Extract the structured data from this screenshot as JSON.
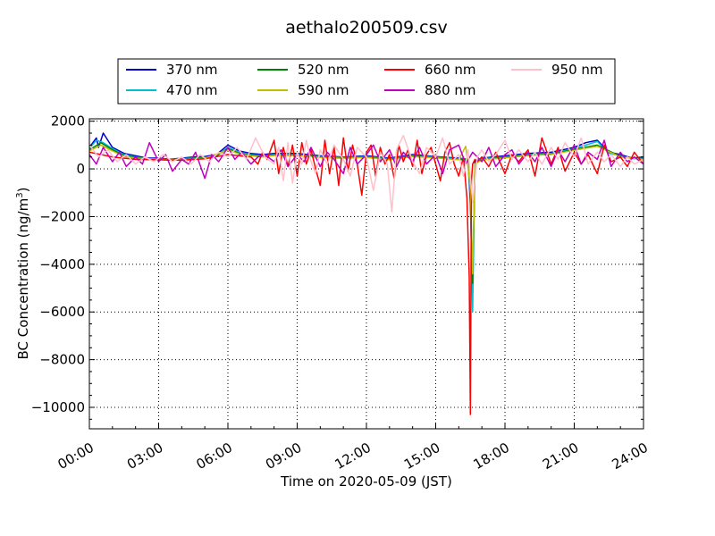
{
  "chart_data": {
    "type": "line",
    "title": "aethalo200509.csv",
    "xlabel": "Time on 2020-05-09 (JST)",
    "ylabel_main": "BC Concentration (ng/m",
    "ylabel_sup": "3",
    "ylabel_close": ")",
    "x_unit": "hours",
    "xlim": [
      0,
      24
    ],
    "ylim": [
      -10900,
      2100
    ],
    "x_tick_values": [
      0,
      3,
      6,
      9,
      12,
      15,
      18,
      21,
      24
    ],
    "x_tick_labels": [
      "00:00",
      "03:00",
      "06:00",
      "09:00",
      "12:00",
      "15:00",
      "18:00",
      "21:00",
      "24:00"
    ],
    "y_tick_values": [
      2000,
      0,
      -2000,
      -4000,
      -6000,
      -8000,
      -10000
    ],
    "y_tick_labels": [
      "2000",
      "0",
      "−2000",
      "−4000",
      "−6000",
      "−8000",
      "−10000"
    ],
    "grid": true,
    "legend_position": "top-center",
    "legend_columns": 4,
    "series": [
      {
        "name": "370 nm",
        "color": "#0000cc",
        "x": [
          0,
          0.3,
          0.4,
          0.6,
          1,
          1.5,
          2,
          2.5,
          3,
          3.5,
          4,
          4.5,
          5,
          5.5,
          6,
          6.5,
          7,
          7.5,
          8,
          9,
          10,
          11,
          12,
          13,
          14,
          15,
          16,
          16.4,
          16.5,
          16.6,
          16.7,
          17,
          18,
          19,
          20,
          21,
          21.5,
          22,
          22.5,
          23,
          23.5,
          24
        ],
        "y": [
          900,
          1300,
          900,
          1500,
          900,
          650,
          550,
          450,
          450,
          400,
          450,
          500,
          520,
          600,
          1000,
          750,
          650,
          600,
          650,
          650,
          550,
          500,
          550,
          450,
          600,
          520,
          450,
          400,
          -1500,
          -5200,
          300,
          450,
          550,
          650,
          700,
          900,
          1100,
          1200,
          700,
          600,
          450,
          500
        ]
      },
      {
        "name": "470 nm",
        "color": "#00bfcf",
        "x": [
          0,
          0.3,
          0.6,
          1,
          1.5,
          2,
          2.5,
          3,
          3.5,
          4,
          4.5,
          5,
          5.5,
          6,
          6.5,
          7,
          7.5,
          8,
          9,
          10,
          11,
          12,
          13,
          14,
          15,
          16,
          16.4,
          16.5,
          16.6,
          16.7,
          17,
          18,
          19,
          20,
          21,
          21.5,
          22,
          22.5,
          23,
          23.5,
          24
        ],
        "y": [
          850,
          1200,
          1100,
          850,
          600,
          500,
          420,
          420,
          380,
          420,
          460,
          480,
          560,
          900,
          700,
          600,
          550,
          600,
          600,
          520,
          480,
          520,
          420,
          560,
          500,
          420,
          380,
          -1200,
          -6000,
          200,
          420,
          500,
          600,
          650,
          850,
          1000,
          1150,
          650,
          550,
          420,
          450
        ]
      },
      {
        "name": "520 nm",
        "color": "#007f00",
        "x": [
          0,
          0.5,
          1,
          1.5,
          2,
          2.5,
          3,
          3.5,
          4,
          4.5,
          5,
          5.5,
          6,
          6.5,
          7,
          7.5,
          8,
          9,
          10,
          11,
          12,
          13,
          14,
          15,
          16,
          16.4,
          16.5,
          16.6,
          16.7,
          17,
          18,
          19,
          20,
          21,
          22,
          23,
          24
        ],
        "y": [
          800,
          1100,
          800,
          560,
          480,
          400,
          400,
          360,
          400,
          440,
          460,
          540,
          850,
          650,
          580,
          520,
          580,
          580,
          500,
          460,
          500,
          400,
          540,
          480,
          400,
          360,
          -1000,
          -4800,
          200,
          400,
          480,
          580,
          620,
          820,
          1000,
          520,
          420
        ]
      },
      {
        "name": "590 nm",
        "color": "#bfbf00",
        "x": [
          0,
          0.5,
          1,
          1.5,
          2,
          3,
          4,
          5,
          6,
          6.5,
          7,
          7.5,
          8,
          9,
          10,
          11,
          12,
          13,
          14,
          15,
          16,
          16.3,
          16.5,
          16.6,
          16.7,
          17,
          18,
          19,
          20,
          21,
          22,
          23,
          24
        ],
        "y": [
          750,
          1000,
          750,
          520,
          450,
          380,
          380,
          440,
          800,
          620,
          550,
          500,
          560,
          560,
          480,
          440,
          480,
          380,
          520,
          460,
          380,
          950,
          -800,
          -4400,
          200,
          380,
          460,
          560,
          600,
          780,
          950,
          500,
          400
        ]
      },
      {
        "name": "660 nm",
        "color": "#ff0000",
        "x": [
          0,
          0.5,
          1,
          2,
          3,
          4,
          5,
          6,
          7,
          7.3,
          7.5,
          7.7,
          8,
          8.2,
          8.4,
          8.6,
          8.8,
          9,
          9.2,
          9.4,
          9.6,
          9.8,
          10,
          10.2,
          10.4,
          10.6,
          10.8,
          11,
          11.2,
          11.4,
          11.6,
          11.8,
          12,
          12.2,
          12.4,
          12.6,
          12.8,
          13,
          13.2,
          13.4,
          13.6,
          13.8,
          14,
          14.2,
          14.4,
          14.6,
          14.8,
          15,
          15.2,
          15.4,
          15.6,
          15.8,
          16,
          16.2,
          16.35,
          16.45,
          16.5,
          16.55,
          16.6,
          16.7,
          16.8,
          17,
          17.3,
          17.6,
          18,
          18.3,
          18.6,
          19,
          19.3,
          19.6,
          20,
          20.3,
          20.6,
          21,
          21.3,
          21.6,
          22,
          22.3,
          22.6,
          23,
          23.3,
          23.6,
          24
        ],
        "y": [
          700,
          600,
          500,
          400,
          380,
          360,
          420,
          600,
          500,
          200,
          700,
          400,
          1200,
          -200,
          900,
          100,
          1000,
          -300,
          1100,
          200,
          800,
          0,
          -700,
          1200,
          -200,
          900,
          -700,
          1300,
          -100,
          1000,
          200,
          -1100,
          700,
          1000,
          -300,
          900,
          200,
          600,
          -400,
          1000,
          300,
          800,
          100,
          1200,
          -200,
          600,
          900,
          200,
          -500,
          700,
          1100,
          200,
          -300,
          500,
          -1200,
          -4500,
          -10300,
          -500,
          200,
          400,
          300,
          500,
          100,
          700,
          -200,
          600,
          300,
          800,
          -300,
          1300,
          200,
          900,
          -100,
          700,
          200,
          600,
          -200,
          1000,
          300,
          500,
          100,
          700,
          200
        ]
      },
      {
        "name": "880 nm",
        "color": "#bf00bf",
        "x": [
          0,
          0.3,
          0.6,
          1,
          1.3,
          1.6,
          2,
          2.3,
          2.6,
          3,
          3.3,
          3.6,
          4,
          4.3,
          4.6,
          5,
          5.3,
          5.6,
          6,
          6.3,
          6.6,
          7,
          7.3,
          7.6,
          8,
          8.3,
          8.6,
          9,
          9.3,
          9.6,
          10,
          10.3,
          10.6,
          11,
          11.3,
          11.6,
          12,
          12.3,
          12.6,
          13,
          13.3,
          13.6,
          14,
          14.3,
          14.6,
          15,
          15.3,
          15.6,
          16,
          16.3,
          16.6,
          17,
          17.3,
          17.6,
          18,
          18.3,
          18.6,
          19,
          19.3,
          19.6,
          20,
          20.3,
          20.6,
          21,
          21.3,
          21.6,
          22,
          22.3,
          22.6,
          23,
          23.3,
          23.6,
          24
        ],
        "y": [
          600,
          200,
          900,
          300,
          700,
          100,
          500,
          200,
          1100,
          300,
          600,
          -100,
          400,
          200,
          700,
          -400,
          600,
          300,
          900,
          400,
          700,
          200,
          500,
          600,
          300,
          800,
          100,
          600,
          300,
          900,
          100,
          700,
          400,
          -200,
          900,
          200,
          600,
          1000,
          300,
          800,
          100,
          700,
          300,
          900,
          200,
          600,
          -200,
          800,
          1000,
          200,
          700,
          300,
          900,
          100,
          600,
          800,
          200,
          700,
          300,
          900,
          100,
          800,
          300,
          1000,
          200,
          700,
          400,
          1200,
          100,
          700,
          300,
          500,
          200
        ]
      },
      {
        "name": "950 nm",
        "color": "#ffc0cb",
        "x": [
          0,
          0.4,
          0.8,
          1.2,
          1.6,
          2,
          2.4,
          2.8,
          3.2,
          3.6,
          4,
          4.4,
          4.8,
          5.2,
          5.6,
          6,
          6.4,
          6.8,
          7.2,
          7.6,
          8,
          8.2,
          8.4,
          8.6,
          8.8,
          9,
          9.2,
          9.4,
          9.6,
          9.8,
          10,
          10.3,
          10.6,
          11,
          11.3,
          11.6,
          12,
          12.3,
          12.6,
          12.9,
          13.1,
          13.3,
          13.6,
          14,
          14.3,
          14.6,
          15,
          15.3,
          15.6,
          16,
          16.2,
          16.4,
          16.6,
          16.8,
          17,
          17.3,
          17.6,
          18,
          18.3,
          18.6,
          19,
          19.3,
          19.6,
          20,
          20.3,
          20.6,
          21,
          21.3,
          21.6,
          22,
          22.3,
          22.6,
          23,
          23.3,
          23.6,
          24
        ],
        "y": [
          1000,
          500,
          800,
          300,
          600,
          200,
          500,
          300,
          600,
          300,
          500,
          200,
          600,
          300,
          700,
          500,
          900,
          400,
          1300,
          500,
          200,
          900,
          -500,
          1100,
          -600,
          700,
          200,
          1200,
          300,
          -200,
          800,
          200,
          1000,
          400,
          -300,
          900,
          500,
          -900,
          700,
          200,
          -1800,
          800,
          1400,
          300,
          -200,
          900,
          500,
          1300,
          200,
          600,
          -300,
          800,
          -1400,
          500,
          800,
          300,
          600,
          1200,
          400,
          800,
          300,
          700,
          200,
          900,
          400,
          1100,
          500,
          1300,
          200,
          700,
          300,
          600,
          100,
          500,
          200,
          400
        ]
      }
    ]
  }
}
